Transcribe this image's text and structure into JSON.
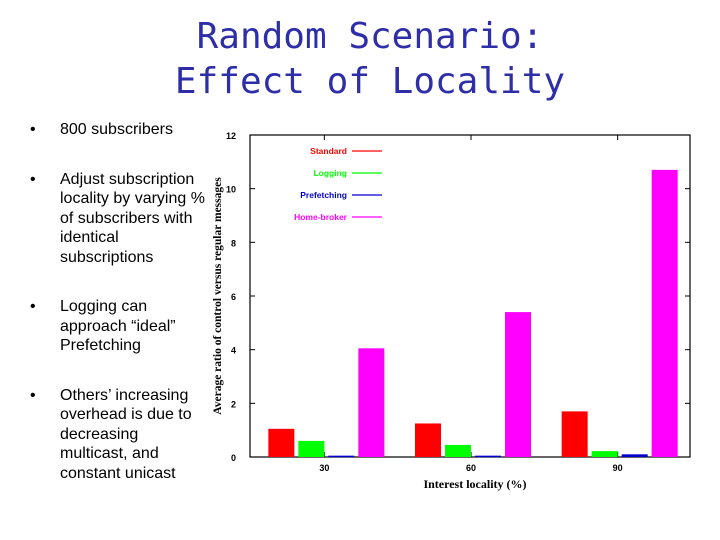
{
  "slide": {
    "title_line1": "Random Scenario:",
    "title_line2": "Effect of Locality",
    "bullet_glyph": "•",
    "bullets": [
      "800 subscribers",
      "Adjust subscription locality by varying % of subscribers with identical subscriptions",
      "Logging can approach “ideal” Prefetching",
      "Others’ increasing overhead is due to decreasing multicast, and constant unicast"
    ]
  },
  "chart_data": {
    "type": "bar",
    "categories": [
      "30",
      "60",
      "90"
    ],
    "series": [
      {
        "name": "Standard",
        "color": "#ff0000",
        "values": [
          1.05,
          1.25,
          1.7
        ]
      },
      {
        "name": "Logging",
        "color": "#00ff00",
        "values": [
          0.6,
          0.45,
          0.22
        ]
      },
      {
        "name": "Prefetching",
        "color": "#0000cc",
        "values": [
          0.05,
          0.05,
          0.1
        ]
      },
      {
        "name": "Home-broker",
        "color": "#ff00ff",
        "values": [
          4.05,
          5.4,
          10.7
        ]
      }
    ],
    "xlabel": "Interest locality (%)",
    "ylabel": "Average ratio of control versus regular messages",
    "ylim": [
      0,
      12
    ],
    "yticks": [
      0,
      2,
      4,
      6,
      8,
      10,
      12
    ],
    "legend_position": "top-left",
    "grid": false
  }
}
